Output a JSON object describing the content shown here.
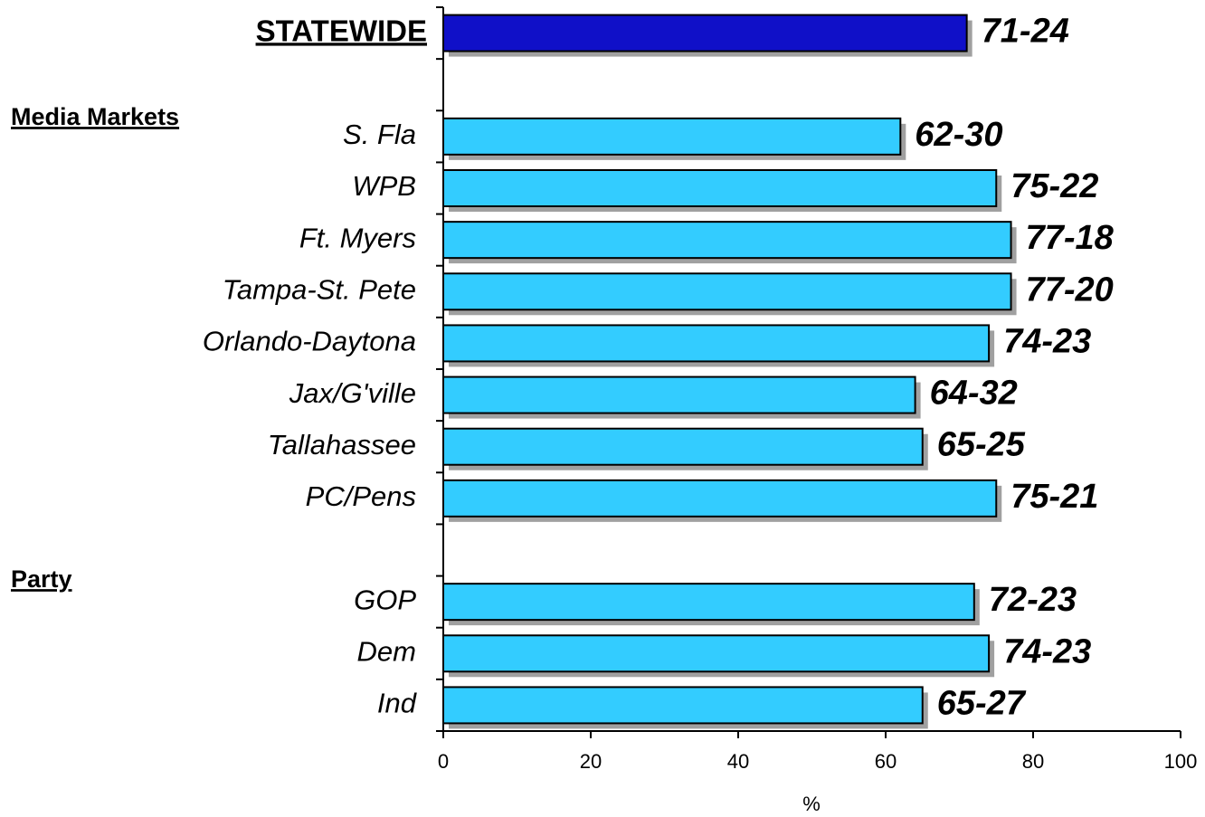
{
  "chart_data": {
    "type": "bar",
    "orientation": "horizontal",
    "categories": [
      "STATEWIDE",
      null,
      "S. Fla",
      "WPB",
      "Ft. Myers",
      "Tampa-St. Pete",
      "Orlando-Daytona",
      "Jax/G'ville",
      "Tallahassee",
      "PC/Pens",
      null,
      "GOP",
      "Dem",
      "Ind"
    ],
    "values": [
      71,
      null,
      62,
      75,
      77,
      77,
      74,
      64,
      65,
      75,
      null,
      72,
      74,
      65
    ],
    "value_labels": [
      "71-24",
      null,
      "62-30",
      "75-22",
      "77-18",
      "77-20",
      "74-23",
      "64-32",
      "65-25",
      "75-21",
      null,
      "72-23",
      "74-23",
      "65-27"
    ],
    "colors": [
      "#1010c8",
      null,
      "#33ccff",
      "#33ccff",
      "#33ccff",
      "#33ccff",
      "#33ccff",
      "#33ccff",
      "#33ccff",
      "#33ccff",
      null,
      "#33ccff",
      "#33ccff",
      "#33ccff"
    ],
    "group_labels": [
      "Media Markets",
      "Party"
    ],
    "xlabel": "%",
    "xlim": [
      0,
      100
    ],
    "xticks": [
      0,
      20,
      40,
      60,
      80,
      100
    ]
  }
}
